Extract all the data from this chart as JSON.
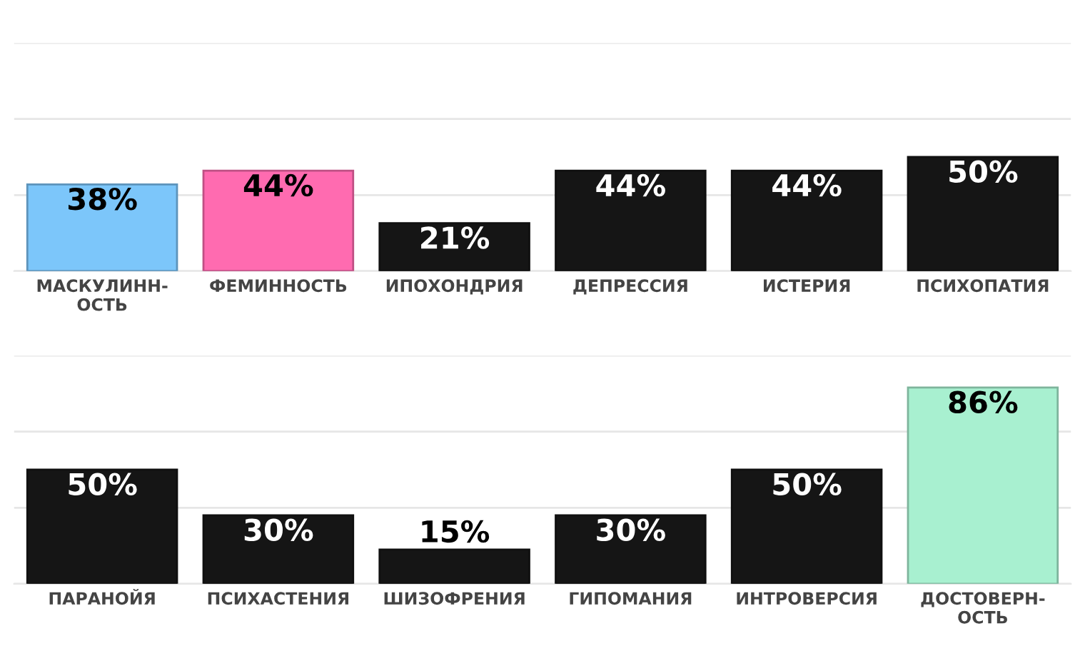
{
  "chart_data": [
    {
      "type": "bar",
      "categories": [
        "МАСКУЛИНН-\nОСТЬ",
        "ФЕМИННОСТЬ",
        "ИПОХОНДРИЯ",
        "ДЕПРЕССИЯ",
        "ИСТЕРИЯ",
        "ПСИХОПАТИЯ"
      ],
      "values": [
        38,
        44,
        21,
        44,
        44,
        50
      ],
      "colors": [
        "#7cc6fa",
        "#ff6bb0",
        "#151515",
        "#151515",
        "#151515",
        "#151515"
      ],
      "value_labels": [
        "38%",
        "44%",
        "21%",
        "44%",
        "44%",
        "50%"
      ],
      "ylim": [
        0,
        100
      ],
      "yticks": [
        {
          "value": 0,
          "label": null
        },
        {
          "value": 33.3,
          "label": null
        },
        {
          "value": 66.7,
          "label": null
        },
        {
          "value": 100,
          "label": null
        }
      ],
      "grid": "y",
      "tick_labels": "x"
    },
    {
      "type": "bar",
      "categories": [
        "ПАРАНОЙЯ",
        "ПСИХАСТЕНИЯ",
        "ШИЗОФРЕНИЯ",
        "ГИПОМАНИЯ",
        "ИНТРОВЕРСИЯ",
        "ДОСТОВЕРН-\nОСТЬ"
      ],
      "values": [
        50,
        30,
        15,
        30,
        50,
        86
      ],
      "colors": [
        "#151515",
        "#151515",
        "#151515",
        "#151515",
        "#151515",
        "#a8f0d0"
      ],
      "value_labels": [
        "50%",
        "30%",
        "15%",
        "30%",
        "50%",
        "86%"
      ],
      "ylim": [
        0,
        100
      ],
      "yticks": [
        {
          "value": 0,
          "label": null
        },
        {
          "value": 33.3,
          "label": null
        },
        {
          "value": 66.7,
          "label": null
        },
        {
          "value": 100,
          "label": null
        }
      ],
      "grid": "y",
      "tick_labels": "x"
    }
  ]
}
